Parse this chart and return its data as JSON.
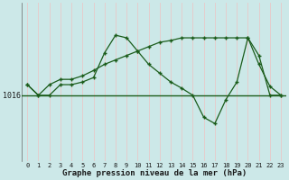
{
  "title": "Graphe pression niveau de la mer (hPa)",
  "background_color": "#cce8e8",
  "vgrid_color": "#e8c8c8",
  "line_color": "#1a5c1a",
  "horizontal_line_value": 1016.0,
  "y_tick_label": 1016,
  "x_labels": [
    "0",
    "1",
    "2",
    "3",
    "4",
    "5",
    "6",
    "7",
    "8",
    "9",
    "10",
    "11",
    "12",
    "13",
    "14",
    "15",
    "16",
    "17",
    "18",
    "19",
    "20",
    "21",
    "22",
    "23"
  ],
  "series1": [
    1017.2,
    1016.0,
    1016.0,
    1017.2,
    1017.2,
    1017.5,
    1018.0,
    1020.8,
    1022.8,
    1022.5,
    1021.0,
    1019.5,
    1018.5,
    1017.5,
    1016.8,
    1016.0,
    1013.5,
    1012.8,
    1015.5,
    1017.5,
    1022.5,
    1020.5,
    1016.0,
    1016.0
  ],
  "series2": [
    1017.2,
    1016.0,
    1017.2,
    1017.8,
    1017.8,
    1018.2,
    1018.8,
    1019.5,
    1020.0,
    1020.5,
    1021.0,
    1021.5,
    1022.0,
    1022.2,
    1022.5,
    1022.5,
    1022.5,
    1022.5,
    1022.5,
    1022.5,
    1022.5,
    1019.5,
    1017.0,
    1016.0
  ],
  "ylim_min": 1008.5,
  "ylim_max": 1026.5,
  "figsize": [
    3.2,
    2.0
  ],
  "dpi": 100
}
